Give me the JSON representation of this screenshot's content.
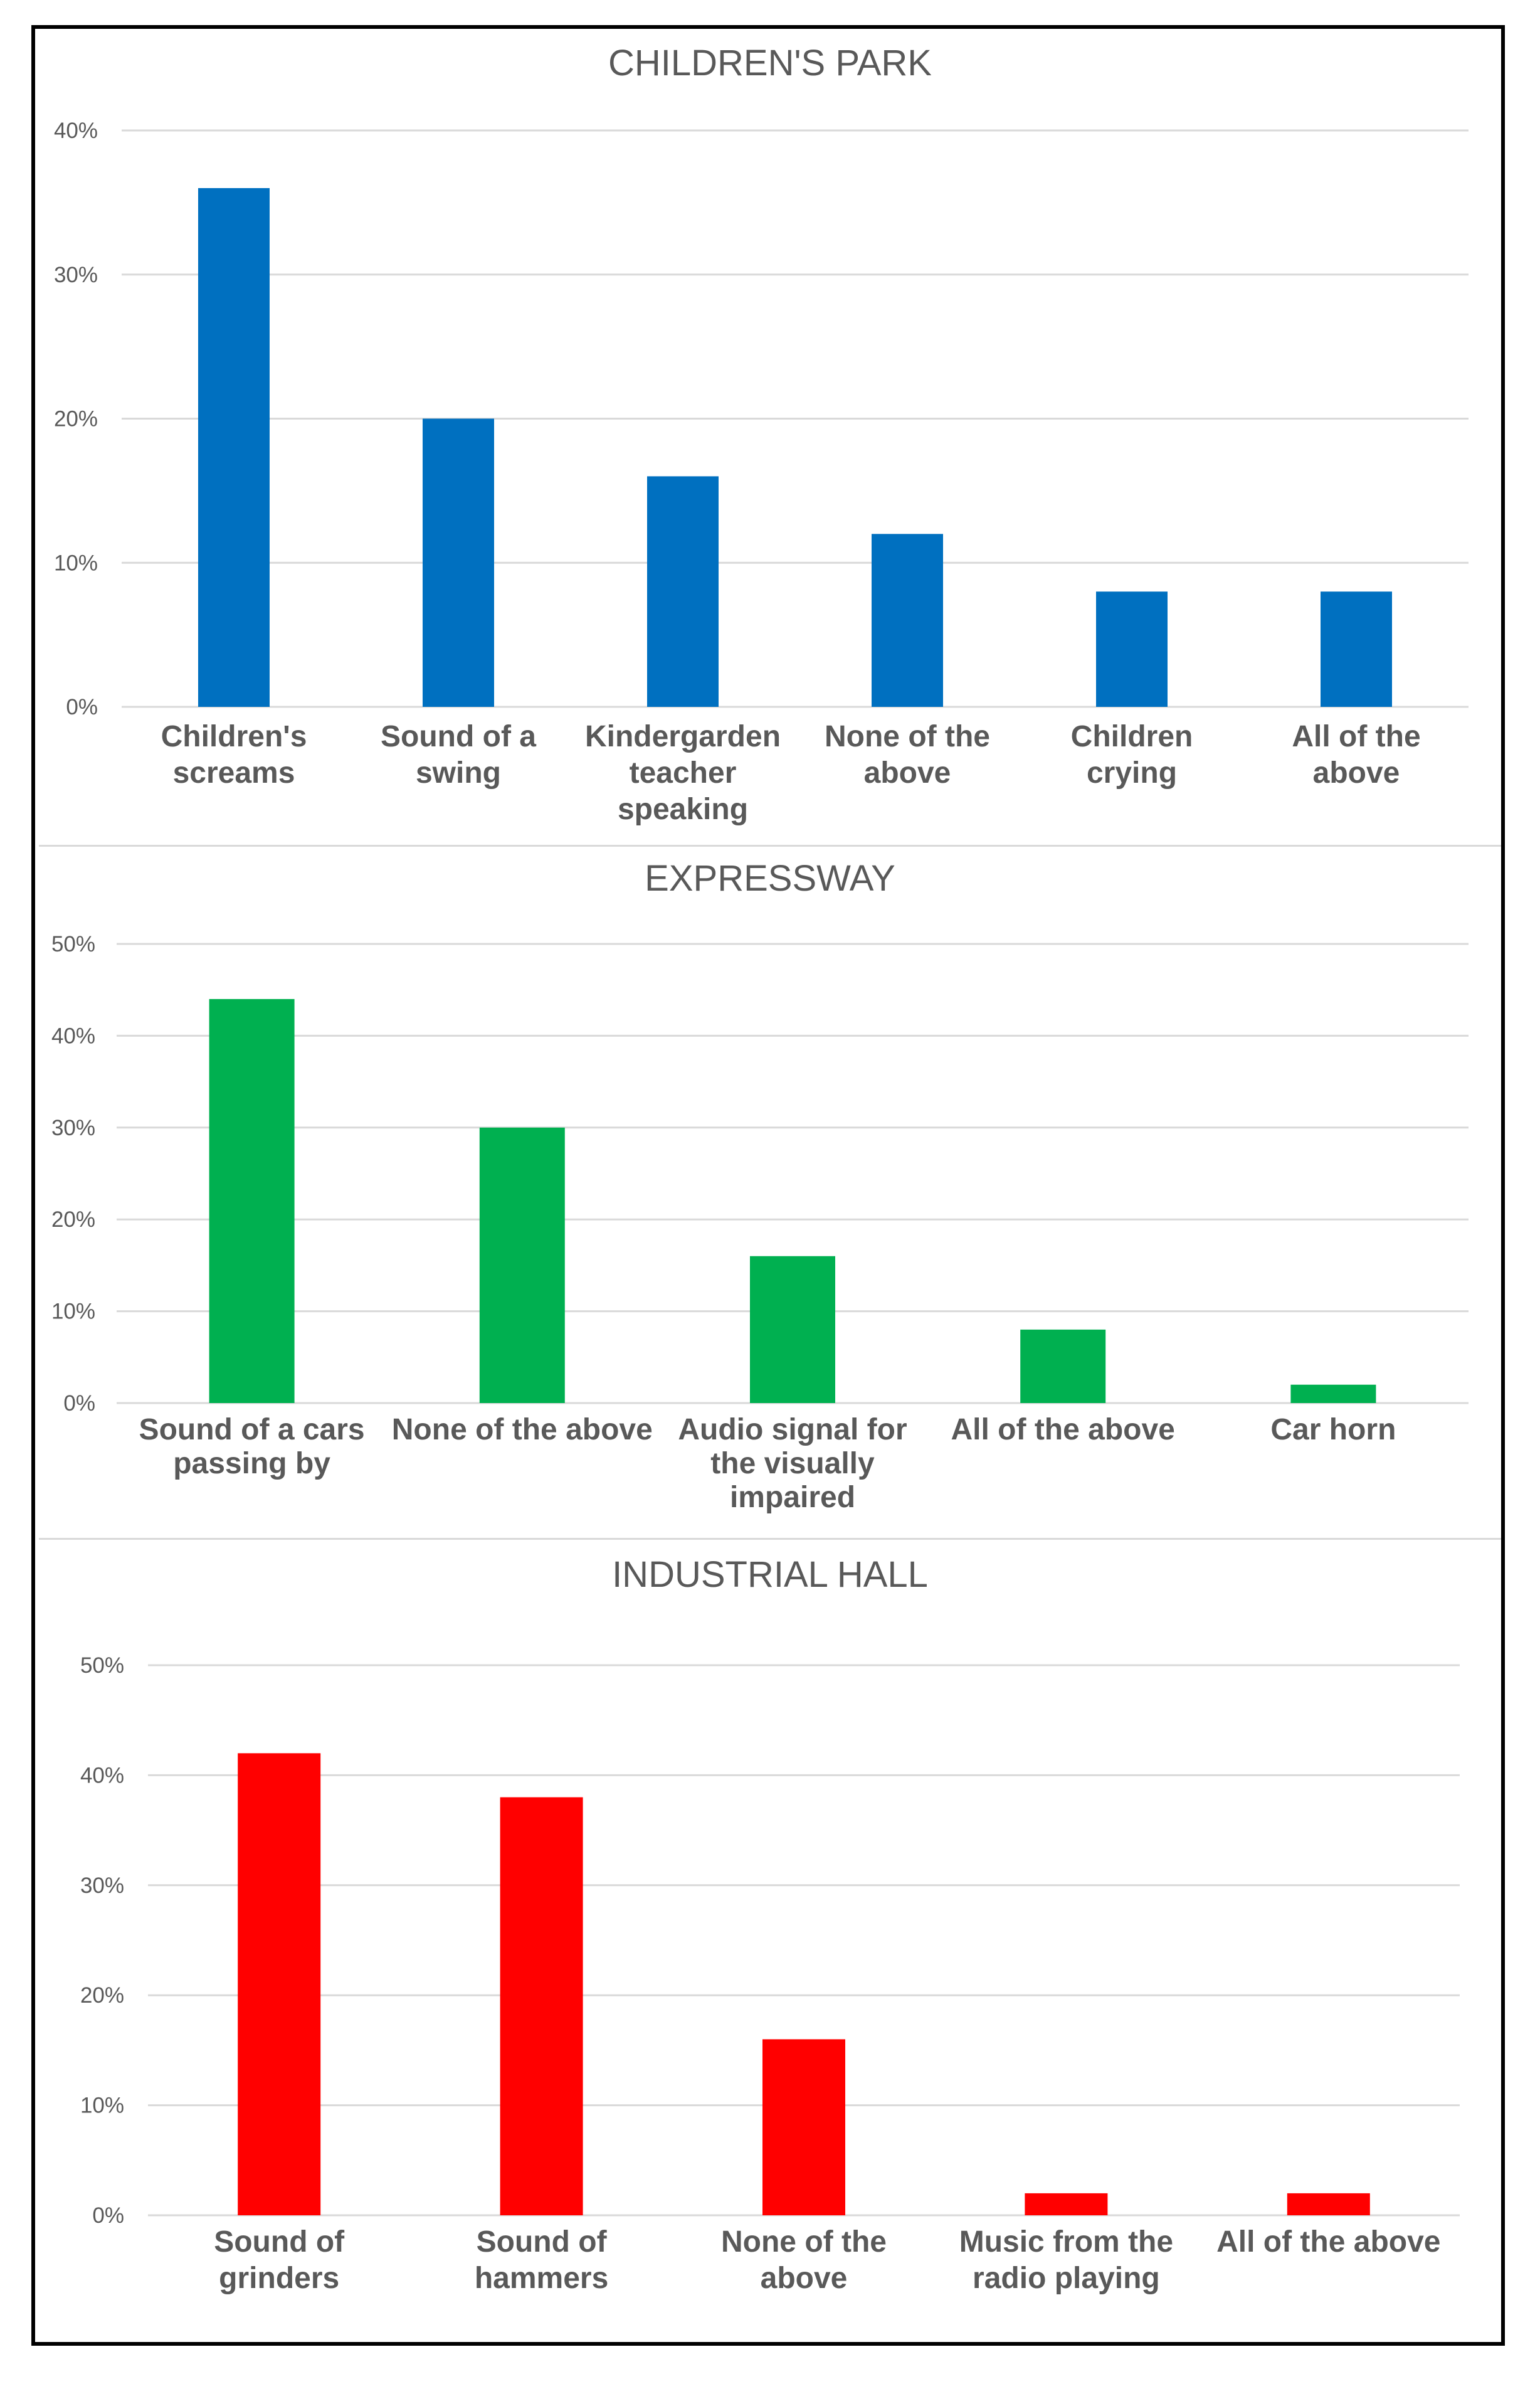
{
  "chart_data": [
    {
      "type": "bar",
      "title": "CHILDREN'S PARK",
      "categories": [
        [
          "Children's",
          "screams"
        ],
        [
          "Sound of a",
          "swing"
        ],
        [
          "Kindergarden",
          "teacher",
          "speaking"
        ],
        [
          "None of the",
          "above"
        ],
        [
          "Children",
          "crying"
        ],
        [
          "All of the",
          "above"
        ]
      ],
      "values": [
        36,
        20,
        16,
        12,
        8,
        8
      ],
      "ylim": [
        0,
        40
      ],
      "yticks": [
        0,
        10,
        20,
        30,
        40
      ],
      "ytick_labels": [
        "0%",
        "10%",
        "20%",
        "30%",
        "40%"
      ],
      "xlabel": "",
      "ylabel": "",
      "color": "#0070C0",
      "grid": true
    },
    {
      "type": "bar",
      "title": "EXPRESSWAY",
      "categories": [
        [
          "Sound of a cars",
          "passing by"
        ],
        [
          "None of the above"
        ],
        [
          "Audio signal for",
          "the visually",
          "impaired"
        ],
        [
          "All of the above"
        ],
        [
          "Car horn"
        ]
      ],
      "values": [
        44,
        30,
        16,
        8,
        2
      ],
      "ylim": [
        0,
        50
      ],
      "yticks": [
        0,
        10,
        20,
        30,
        40,
        50
      ],
      "ytick_labels": [
        "0%",
        "10%",
        "20%",
        "30%",
        "40%",
        "50%"
      ],
      "xlabel": "",
      "ylabel": "",
      "color": "#00B050",
      "grid": true
    },
    {
      "type": "bar",
      "title": "INDUSTRIAL HALL",
      "categories": [
        [
          "Sound of",
          "grinders"
        ],
        [
          "Sound of",
          "hammers"
        ],
        [
          "None of the",
          "above"
        ],
        [
          "Music from the",
          "radio playing"
        ],
        [
          "All of the above"
        ]
      ],
      "values": [
        42,
        38,
        16,
        2,
        2
      ],
      "ylim": [
        0,
        50
      ],
      "yticks": [
        0,
        10,
        20,
        30,
        40,
        50
      ],
      "ytick_labels": [
        "0%",
        "10%",
        "20%",
        "30%",
        "40%",
        "50%"
      ],
      "xlabel": "",
      "ylabel": "",
      "color": "#FF0000",
      "grid": true
    }
  ]
}
